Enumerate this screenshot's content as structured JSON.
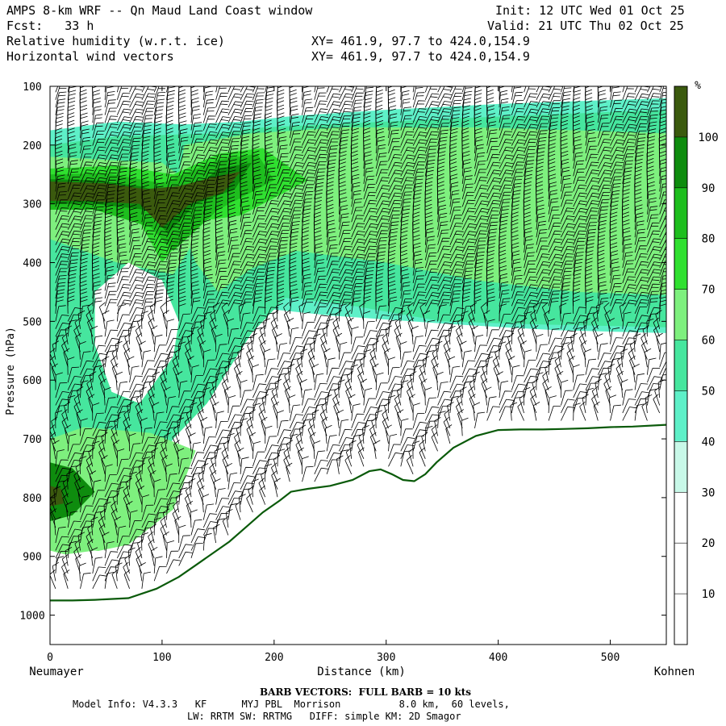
{
  "header": {
    "title": "AMPS 8-km WRF -- Qn Maud Land Coast window",
    "init": "Init: 12 UTC Wed 01 Oct 25",
    "fcst": "Fcst:   33 h",
    "valid": "Valid: 21 UTC Thu 02 Oct 25",
    "field1": "Relative humidity (w.r.t. ice)",
    "field2": "Horizontal wind vectors",
    "xy1": "XY= 461.9, 97.7 to 424.0,154.9",
    "xy2": "XY= 461.9, 97.7 to 424.0,154.9"
  },
  "footer": {
    "barb_note": "BARB VECTORS:  FULL BARB = 10 kts",
    "model_info": "Model Info: V4.3.3   KF      MYJ PBL  Morrison          8.0 km,  60 levels,",
    "physics": "LW: RRTM SW: RRTMG   DIFF: simple KM: 2D Smagor"
  },
  "chart_data": {
    "type": "heatmap",
    "title": "Relative humidity (w.r.t. ice)",
    "xlabel": "Distance (km)",
    "ylabel": "Pressure (hPa)",
    "x_left_label": "Neumayer",
    "x_right_label": "Kohnen",
    "xlim": [
      0,
      550
    ],
    "ylim": [
      1050,
      100
    ],
    "x_ticks": [
      0,
      100,
      200,
      300,
      400,
      500
    ],
    "y_ticks": [
      100,
      200,
      300,
      400,
      500,
      600,
      700,
      800,
      900,
      1000
    ],
    "colorbar": {
      "unit": "%",
      "levels": [
        10,
        20,
        30,
        40,
        50,
        60,
        70,
        80,
        90,
        100
      ],
      "colors": [
        "#ffffff",
        "#ffffff",
        "#ffffff",
        "#c8f8e8",
        "#5ef0c8",
        "#46e69e",
        "#7ef07e",
        "#30e030",
        "#1ebe1e",
        "#0e8c0e",
        "#3b5a0e"
      ]
    },
    "terrain": {
      "x": [
        0,
        20,
        40,
        70,
        95,
        115,
        130,
        145,
        160,
        175,
        190,
        205,
        215,
        230,
        250,
        270,
        285,
        295,
        305,
        315,
        325,
        335,
        345,
        360,
        380,
        400,
        420,
        440,
        460,
        480,
        500,
        520,
        550
      ],
      "p": [
        975,
        975,
        974,
        971,
        955,
        935,
        915,
        895,
        875,
        850,
        825,
        805,
        790,
        785,
        780,
        770,
        755,
        752,
        760,
        770,
        772,
        760,
        740,
        715,
        695,
        685,
        684,
        684,
        683,
        682,
        680,
        679,
        676
      ]
    },
    "humid_regions": [
      {
        "level": 40,
        "points": [
          [
            0,
            175
          ],
          [
            60,
            160
          ],
          [
            120,
            165
          ],
          [
            170,
            160
          ],
          [
            220,
            150
          ],
          [
            300,
            140
          ],
          [
            400,
            130
          ],
          [
            550,
            120
          ],
          [
            550,
            520
          ],
          [
            450,
            515
          ],
          [
            360,
            505
          ],
          [
            250,
            490
          ],
          [
            200,
            480
          ],
          [
            170,
            530
          ],
          [
            140,
            620
          ],
          [
            110,
            700
          ],
          [
            60,
            860
          ],
          [
            0,
            880
          ]
        ]
      },
      {
        "level": 50,
        "points": [
          [
            0,
            200
          ],
          [
            60,
            185
          ],
          [
            150,
            180
          ],
          [
            190,
            170
          ],
          [
            300,
            160
          ],
          [
            420,
            150
          ],
          [
            550,
            140
          ],
          [
            550,
            510
          ],
          [
            430,
            505
          ],
          [
            350,
            500
          ],
          [
            260,
            470
          ],
          [
            210,
            460
          ],
          [
            180,
            520
          ],
          [
            160,
            580
          ],
          [
            140,
            640
          ],
          [
            100,
            720
          ],
          [
            60,
            820
          ],
          [
            0,
            840
          ]
        ]
      },
      {
        "level": 60,
        "points": [
          [
            120,
            200
          ],
          [
            180,
            180
          ],
          [
            260,
            170
          ],
          [
            380,
            170
          ],
          [
            470,
            175
          ],
          [
            550,
            180
          ],
          [
            550,
            455
          ],
          [
            470,
            450
          ],
          [
            380,
            430
          ],
          [
            300,
            400
          ],
          [
            220,
            380
          ],
          [
            180,
            410
          ],
          [
            150,
            450
          ],
          [
            130,
            400
          ],
          [
            110,
            300
          ]
        ]
      },
      {
        "level": 60,
        "points": [
          [
            0,
            700
          ],
          [
            30,
            680
          ],
          [
            90,
            690
          ],
          [
            130,
            720
          ],
          [
            110,
            820
          ],
          [
            70,
            880
          ],
          [
            20,
            900
          ],
          [
            0,
            890
          ]
        ]
      },
      {
        "level": 60,
        "points": [
          [
            0,
            220
          ],
          [
            100,
            230
          ],
          [
            150,
            300
          ],
          [
            110,
            420
          ],
          [
            60,
            400
          ],
          [
            0,
            360
          ]
        ]
      },
      {
        "level": 70,
        "points": [
          [
            0,
            240
          ],
          [
            60,
            235
          ],
          [
            110,
            250
          ],
          [
            150,
            215
          ],
          [
            190,
            205
          ],
          [
            230,
            260
          ],
          [
            170,
            320
          ],
          [
            130,
            330
          ],
          [
            100,
            400
          ],
          [
            80,
            330
          ],
          [
            30,
            300
          ],
          [
            0,
            300
          ]
        ]
      },
      {
        "level": 80,
        "points": [
          [
            0,
            250
          ],
          [
            50,
            248
          ],
          [
            100,
            265
          ],
          [
            150,
            225
          ],
          [
            185,
            215
          ],
          [
            200,
            260
          ],
          [
            150,
            310
          ],
          [
            110,
            380
          ],
          [
            90,
            340
          ],
          [
            40,
            310
          ],
          [
            0,
            310
          ]
        ]
      },
      {
        "level": 90,
        "points": [
          [
            0,
            258
          ],
          [
            40,
            260
          ],
          [
            80,
            270
          ],
          [
            120,
            290
          ],
          [
            150,
            240
          ],
          [
            180,
            230
          ],
          [
            165,
            275
          ],
          [
            130,
            300
          ],
          [
            105,
            350
          ],
          [
            85,
            310
          ],
          [
            40,
            300
          ],
          [
            0,
            300
          ]
        ]
      },
      {
        "level": 100,
        "points": [
          [
            0,
            262
          ],
          [
            50,
            265
          ],
          [
            85,
            275
          ],
          [
            115,
            270
          ],
          [
            145,
            255
          ],
          [
            170,
            245
          ],
          [
            155,
            280
          ],
          [
            125,
            300
          ],
          [
            100,
            340
          ],
          [
            80,
            300
          ],
          [
            30,
            295
          ],
          [
            0,
            295
          ]
        ]
      },
      {
        "level": 90,
        "points": [
          [
            0,
            740
          ],
          [
            20,
            750
          ],
          [
            40,
            790
          ],
          [
            20,
            830
          ],
          [
            0,
            840
          ]
        ]
      },
      {
        "level": 100,
        "points": [
          [
            0,
            780
          ],
          [
            10,
            785
          ],
          [
            12,
            810
          ],
          [
            0,
            815
          ]
        ]
      }
    ],
    "dry_regions": [
      {
        "points": [
          [
            40,
            450
          ],
          [
            70,
            400
          ],
          [
            100,
            430
          ],
          [
            115,
            500
          ],
          [
            110,
            560
          ],
          [
            80,
            640
          ],
          [
            55,
            620
          ],
          [
            40,
            540
          ]
        ]
      },
      {
        "points": [
          [
            125,
            120
          ],
          [
            140,
            110
          ],
          [
            150,
            130
          ],
          [
            145,
            150
          ],
          [
            130,
            150
          ]
        ]
      },
      {
        "points": [
          [
            190,
            110
          ],
          [
            300,
            108
          ],
          [
            420,
            112
          ],
          [
            550,
            108
          ],
          [
            550,
            115
          ],
          [
            430,
            120
          ],
          [
            300,
            118
          ],
          [
            200,
            125
          ]
        ]
      },
      {
        "points": [
          [
            0,
            900
          ],
          [
            40,
            890
          ],
          [
            80,
            900
          ],
          [
            120,
            925
          ],
          [
            90,
            950
          ],
          [
            40,
            955
          ],
          [
            0,
            950
          ]
        ]
      }
    ]
  }
}
